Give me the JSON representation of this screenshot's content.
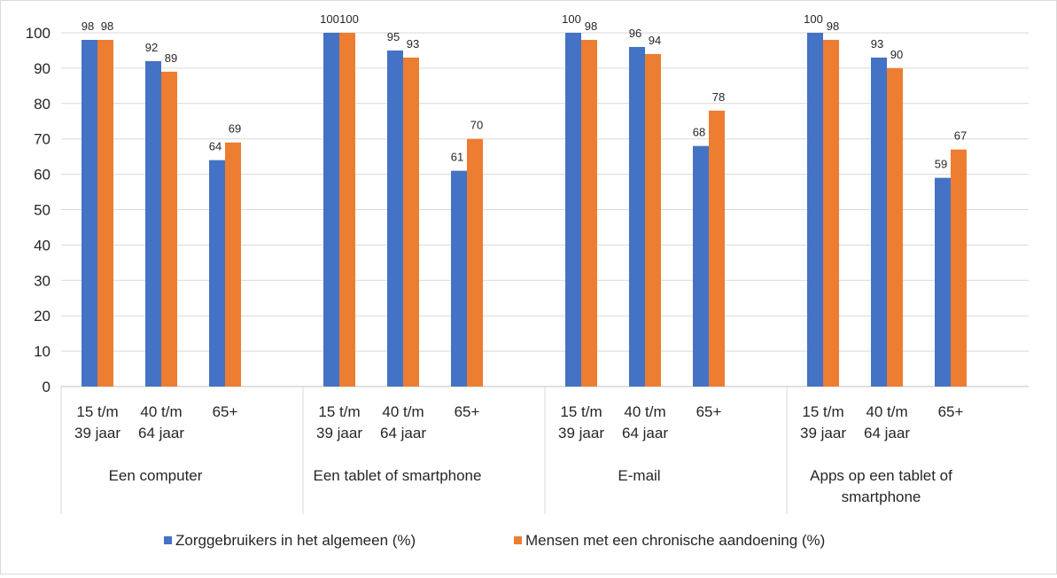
{
  "chart_data": {
    "type": "bar",
    "groups": [
      {
        "label": [
          "Een computer"
        ],
        "subcategories": [
          [
            "15 t/m",
            "39 jaar"
          ],
          [
            "40 t/m",
            "64 jaar"
          ],
          [
            "65+"
          ]
        ]
      },
      {
        "label": [
          "Een tablet of smartphone"
        ],
        "subcategories": [
          [
            "15 t/m",
            "39 jaar"
          ],
          [
            "40 t/m",
            "64 jaar"
          ],
          [
            "65+"
          ]
        ]
      },
      {
        "label": [
          "E-mail"
        ],
        "subcategories": [
          [
            "15 t/m",
            "39 jaar"
          ],
          [
            "40 t/m",
            "64 jaar"
          ],
          [
            "65+"
          ]
        ]
      },
      {
        "label": [
          "Apps op een tablet of",
          "smartphone"
        ],
        "subcategories": [
          [
            "15 t/m",
            "39 jaar"
          ],
          [
            "40 t/m",
            "64 jaar"
          ],
          [
            "65+"
          ]
        ]
      }
    ],
    "series": [
      {
        "name": "Zorggebruikers in het algemeen (%)",
        "color": "#4472C4",
        "values": [
          98,
          92,
          64,
          100,
          95,
          61,
          100,
          96,
          68,
          100,
          93,
          59
        ]
      },
      {
        "name": "Mensen met een chronische aandoening (%)",
        "color": "#ED7D31",
        "values": [
          98,
          89,
          69,
          100,
          93,
          70,
          98,
          94,
          78,
          98,
          90,
          67
        ]
      }
    ],
    "ylim": [
      0,
      100
    ],
    "yticks": [
      0,
      10,
      20,
      30,
      40,
      50,
      60,
      70,
      80,
      90,
      100
    ],
    "grid": true,
    "legend_position": "bottom"
  }
}
